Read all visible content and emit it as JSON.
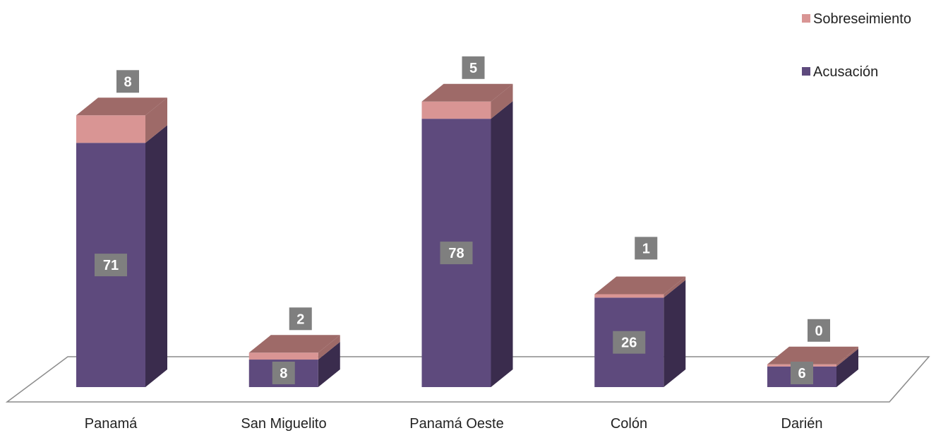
{
  "chart_data": {
    "type": "bar",
    "stacked": true,
    "three_d": true,
    "categories": [
      "Panamá",
      "San Miguelito",
      "Panamá Oeste",
      "Colón",
      "Darién"
    ],
    "series": [
      {
        "name": "Acusación",
        "values": [
          71,
          8,
          78,
          26,
          6
        ],
        "color": "#5e4a7d"
      },
      {
        "name": "Sobreseimiento",
        "values": [
          8,
          2,
          5,
          1,
          0
        ],
        "color": "#d99594"
      }
    ],
    "ylim": [
      0,
      85
    ],
    "grid": false,
    "legend": "top-right",
    "data_label_bg": "#7f7f7f",
    "top_face_color": "#9e6a68",
    "side_dark_color": "#3a2c4d",
    "side_light_color": "#9e6a68"
  }
}
